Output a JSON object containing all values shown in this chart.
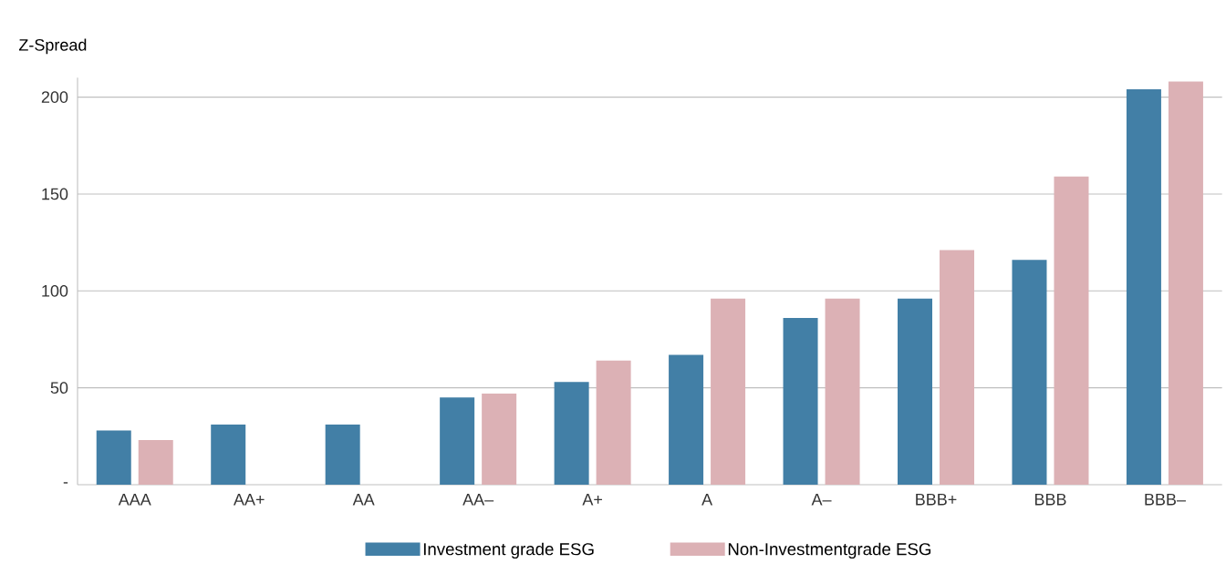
{
  "chart_data": {
    "type": "bar",
    "ylabel": "Z-Spread",
    "categories": [
      "AAA",
      "AA+",
      "AA",
      "AA–",
      "A+",
      "A",
      "A–",
      "BBB+",
      "BBB",
      "BBB–"
    ],
    "series": [
      {
        "name": "Investment grade ESG",
        "color": "#427fa6",
        "values": [
          28,
          31,
          31,
          45,
          53,
          67,
          86,
          96,
          116,
          204
        ]
      },
      {
        "name": "Non-Investmentgrade ESG",
        "color": "#dcb1b5",
        "values": [
          23,
          null,
          null,
          47,
          64,
          96,
          96,
          121,
          159,
          208
        ]
      }
    ],
    "ylim": [
      0,
      210
    ],
    "yticks": [
      {
        "value": 0,
        "label": "-"
      },
      50,
      100,
      150,
      200
    ],
    "grid": "y",
    "legend": "bottom"
  }
}
